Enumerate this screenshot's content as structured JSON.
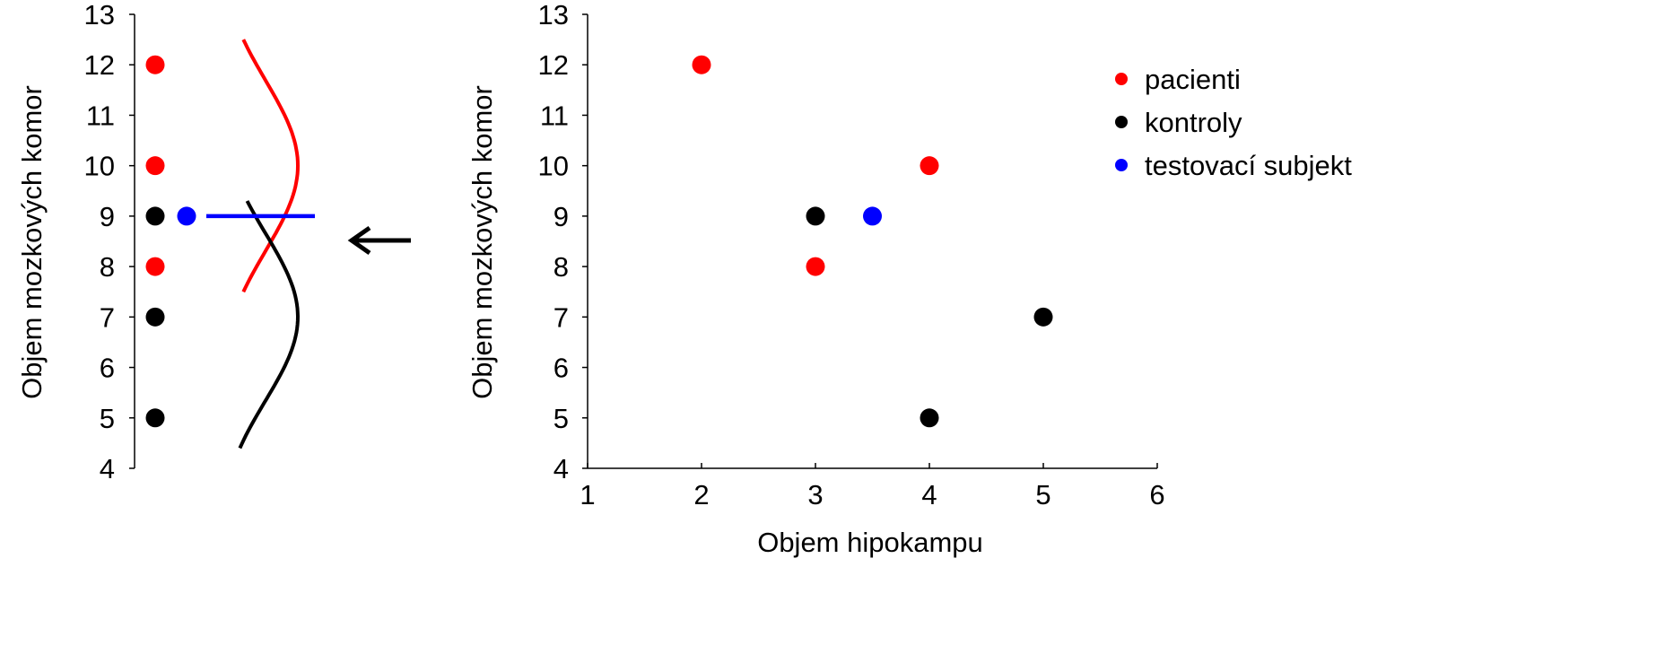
{
  "chart_data": [
    {
      "type": "scatter",
      "ylabel": "Objem mozkových komor",
      "ylim": [
        4,
        13
      ],
      "yticks": [
        "4",
        "5",
        "6",
        "7",
        "8",
        "9",
        "10",
        "11",
        "12",
        "13"
      ],
      "series": [
        {
          "name": "pacienti",
          "color": "#ff0000",
          "y": [
            12,
            10,
            8
          ]
        },
        {
          "name": "kontroly",
          "color": "#000000",
          "y": [
            9,
            7,
            5
          ]
        },
        {
          "name": "testovací subjekt",
          "color": "#0000ff",
          "y": [
            9
          ]
        }
      ],
      "distributions": [
        {
          "name": "pacienti",
          "color": "#ff0000",
          "mean": 10,
          "y_range": [
            7.5,
            12.5
          ]
        },
        {
          "name": "kontroly",
          "color": "#000000",
          "mean": 7,
          "y_range": [
            4.4,
            9.3
          ]
        }
      ],
      "threshold": {
        "y": 9,
        "color": "#0000ff"
      },
      "arrow": "left"
    },
    {
      "type": "scatter",
      "xlabel": "Objem hipokampu",
      "ylabel": "Objem mozkových komor",
      "xlim": [
        1,
        6
      ],
      "ylim": [
        4,
        13
      ],
      "xticks": [
        "1",
        "2",
        "3",
        "4",
        "5",
        "6"
      ],
      "yticks": [
        "4",
        "5",
        "6",
        "7",
        "8",
        "9",
        "10",
        "11",
        "12",
        "13"
      ],
      "legend_position": "top-right",
      "series": [
        {
          "name": "pacienti",
          "color": "#ff0000",
          "points": [
            [
              2,
              12
            ],
            [
              4,
              10
            ],
            [
              3,
              8
            ]
          ]
        },
        {
          "name": "kontroly",
          "color": "#000000",
          "points": [
            [
              3,
              9
            ],
            [
              5,
              7
            ],
            [
              4,
              5
            ]
          ]
        },
        {
          "name": "testovací subjekt",
          "color": "#0000ff",
          "points": [
            [
              3.5,
              9
            ]
          ]
        }
      ]
    }
  ]
}
